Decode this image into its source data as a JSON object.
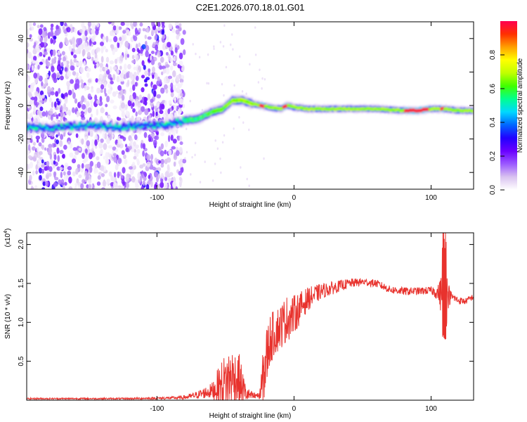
{
  "figure_title": "C2E1.2026.070.18.01.G01",
  "chart_data": [
    {
      "type": "heatmap",
      "xlabel": "Height of straight line (km)",
      "ylabel": "Frequency (Hz)",
      "xlim": [
        -195,
        131
      ],
      "ylim": [
        -50,
        50
      ],
      "xticks": [
        -100,
        0,
        100
      ],
      "xtick_labels": [
        "-100",
        "0",
        "100"
      ],
      "yticks": [
        -40,
        -20,
        0,
        20,
        40
      ],
      "ytick_labels": [
        "-40",
        "-20",
        "0",
        "20",
        "40"
      ],
      "noise_region_xmax": -80,
      "ridge_frequency": {
        "x": [
          -195,
          -175,
          -150,
          -130,
          -110,
          -95,
          -80,
          -70,
          -60,
          -52,
          -45,
          -38,
          -30,
          -24,
          -18,
          -10,
          -5,
          0,
          10,
          30,
          60,
          80,
          90,
          100,
          105,
          110,
          120,
          131
        ],
        "y": [
          -13,
          -13,
          -12,
          -13,
          -12,
          -12,
          -9,
          -8,
          -4,
          -2,
          3,
          3,
          1,
          0,
          -1,
          -2,
          0,
          -1,
          -2,
          -2,
          -2,
          -3,
          -3,
          -2,
          -2,
          -2,
          -3,
          -3
        ]
      },
      "ridge_peak_segments": [
        {
          "from": -25,
          "to": -22
        },
        {
          "from": -8,
          "to": -5
        },
        {
          "from": 80,
          "to": 98
        },
        {
          "from": 107,
          "to": 109
        }
      ],
      "colorbar": {
        "label": "Normalized spectral amplitude",
        "range": [
          0.0,
          1.0
        ],
        "ticks": [
          0.0,
          0.2,
          0.4,
          0.6,
          0.8
        ],
        "tick_labels": [
          "0.0",
          "0.2",
          "0.4",
          "0.6",
          "0.8"
        ],
        "colors": [
          "#ffffff",
          "#d9c2f0",
          "#9b59ff",
          "#6a00ff",
          "#2200ff",
          "#0066ff",
          "#00d8ff",
          "#00ff90",
          "#40ff00",
          "#c0ff00",
          "#ffff00",
          "#ffa000",
          "#ff3000",
          "#ff0050"
        ]
      }
    },
    {
      "type": "line",
      "xlabel": "Height of straight line (km)",
      "ylabel": "SNR (10 * v/v)",
      "multiplier_label": "(x10",
      "multiplier_exp": "4",
      "multiplier_close": ")",
      "xlim": [
        -195,
        131
      ],
      "ylim": [
        0,
        2.15
      ],
      "xticks": [
        -100,
        0,
        100
      ],
      "xtick_labels": [
        "-100",
        "0",
        "100"
      ],
      "yticks": [
        0.5,
        1.0,
        1.5,
        2.0
      ],
      "ytick_labels": [
        "0.5",
        "1.0",
        "1.5",
        "2.0"
      ],
      "color": "#e8322d",
      "series_envelope": {
        "x": [
          -195,
          -175,
          -150,
          -125,
          -100,
          -85,
          -78,
          -70,
          -60,
          -52,
          -46,
          -40,
          -35,
          -30,
          -25,
          -22,
          -18,
          -15,
          -10,
          -5,
          0,
          5,
          10,
          20,
          30,
          40,
          50,
          60,
          70,
          80,
          90,
          100,
          105,
          108,
          110,
          112,
          115,
          120,
          125,
          131
        ],
        "mean": [
          0.02,
          0.02,
          0.02,
          0.02,
          0.025,
          0.03,
          0.04,
          0.07,
          0.12,
          0.2,
          0.3,
          0.25,
          0.08,
          0.05,
          0.05,
          0.35,
          0.75,
          0.85,
          0.95,
          1.05,
          1.1,
          1.2,
          1.3,
          1.4,
          1.45,
          1.5,
          1.52,
          1.5,
          1.42,
          1.4,
          1.4,
          1.41,
          1.38,
          1.35,
          1.3,
          1.35,
          1.33,
          1.28,
          1.27,
          1.33
        ],
        "amp": [
          0.01,
          0.01,
          0.01,
          0.01,
          0.015,
          0.02,
          0.03,
          0.05,
          0.1,
          0.35,
          0.4,
          0.35,
          0.1,
          0.05,
          0.05,
          0.45,
          0.35,
          0.3,
          0.3,
          0.3,
          0.25,
          0.2,
          0.15,
          0.1,
          0.08,
          0.06,
          0.05,
          0.05,
          0.05,
          0.05,
          0.05,
          0.05,
          0.1,
          0.3,
          0.7,
          0.2,
          0.05,
          0.05,
          0.04,
          0.04
        ]
      }
    }
  ]
}
